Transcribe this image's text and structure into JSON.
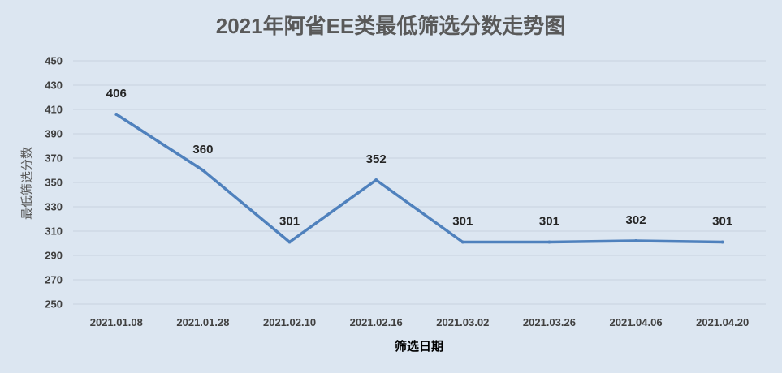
{
  "chart_data": {
    "type": "line",
    "title": "2021年阿省EE类最低筛选分数走势图",
    "xlabel": "筛选日期",
    "ylabel": "最低筛选分数",
    "categories": [
      "2021.01.08",
      "2021.01.28",
      "2021.02.10",
      "2021.02.16",
      "2021.03.02",
      "2021.03.26",
      "2021.04.06",
      "2021.04.20"
    ],
    "series": [
      {
        "values": [
          406,
          360,
          301,
          352,
          301,
          301,
          302,
          301
        ],
        "color": "#4f81bd"
      }
    ],
    "ylim": [
      250,
      450
    ],
    "yticks": [
      250,
      270,
      290,
      310,
      330,
      350,
      370,
      390,
      410,
      430,
      450
    ],
    "grid": true,
    "data_labels": true,
    "background": "#dce6f1"
  }
}
